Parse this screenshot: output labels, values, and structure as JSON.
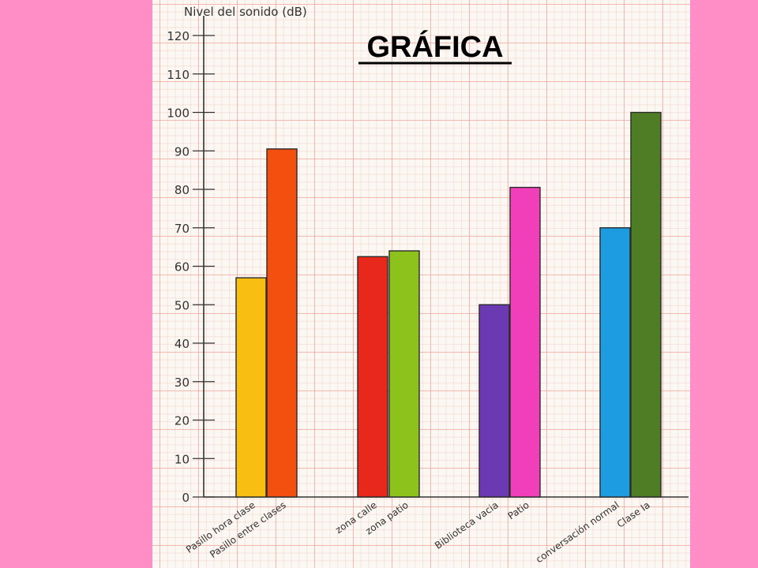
{
  "chart_data": {
    "type": "bar",
    "title": "GRÁFICA",
    "ylabel": "Nivel del sonido (dB)",
    "xlabel": "",
    "ylim": [
      0,
      120
    ],
    "yticks": [
      0,
      10,
      20,
      30,
      40,
      50,
      60,
      70,
      80,
      90,
      100,
      110,
      120
    ],
    "grid": true,
    "categories": [
      "Pasillo hora clase",
      "Pasillo entre clases",
      "zona calle",
      "zona patio",
      "Biblioteca vacia",
      "Patio",
      "conversación normal",
      "Clase Ia"
    ],
    "values": [
      57,
      90.5,
      62.5,
      64,
      50,
      80.5,
      70,
      100
    ],
    "colors": [
      "#F9BE12",
      "#F3500F",
      "#E8281A",
      "#8CC21B",
      "#6B3AB2",
      "#F03FB8",
      "#1E9CE2",
      "#4F7D26"
    ]
  }
}
